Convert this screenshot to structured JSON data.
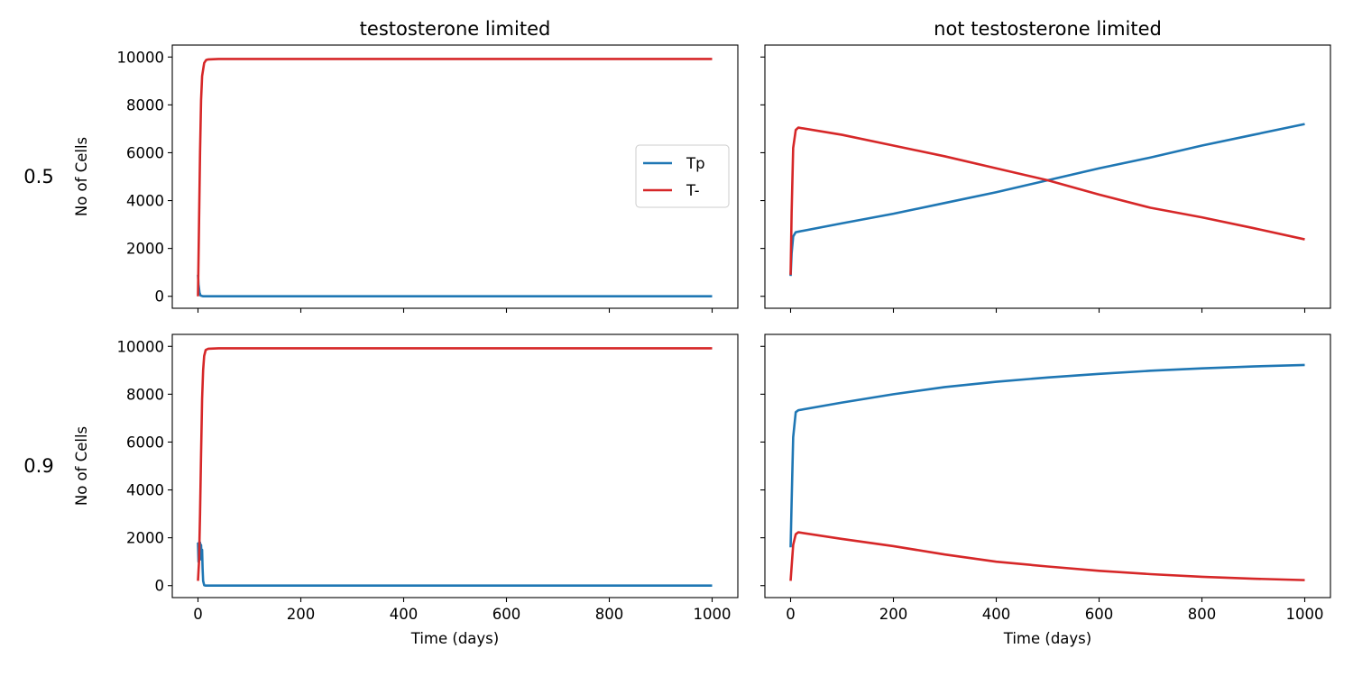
{
  "chart_data": [
    {
      "type": "line",
      "title": "testosterone limited",
      "row_label": "0.5",
      "xlabel": "",
      "ylabel": "No of Cells",
      "xlim": [
        -50,
        1050
      ],
      "ylim": [
        -500,
        10500
      ],
      "xticks": [
        0,
        200,
        400,
        600,
        800,
        1000
      ],
      "xticklabels_visible": false,
      "yticks": [
        0,
        2000,
        4000,
        6000,
        8000,
        10000
      ],
      "yticklabels_visible": true,
      "legend": {
        "placement": "center-right",
        "entries": [
          "Tp",
          "T-"
        ]
      },
      "grid": false,
      "series": [
        {
          "name": "Tp",
          "color": "#1f77b4",
          "x": [
            0,
            1,
            3,
            5,
            10,
            20,
            100,
            500,
            1000
          ],
          "y": [
            900,
            500,
            150,
            30,
            0,
            0,
            0,
            0,
            0
          ]
        },
        {
          "name": "T-",
          "color": "#d62728",
          "x": [
            0,
            2,
            4,
            6,
            8,
            12,
            16,
            20,
            40,
            100,
            500,
            1000
          ],
          "y": [
            0,
            3000,
            6000,
            8200,
            9200,
            9750,
            9880,
            9900,
            9920,
            9920,
            9920,
            9920
          ]
        }
      ]
    },
    {
      "type": "line",
      "title": "not testosterone limited",
      "row_label": "",
      "xlabel": "",
      "ylabel": "",
      "xlim": [
        -50,
        1050
      ],
      "ylim": [
        -500,
        10500
      ],
      "xticks": [
        0,
        200,
        400,
        600,
        800,
        1000
      ],
      "xticklabels_visible": false,
      "yticks": [
        0,
        2000,
        4000,
        6000,
        8000,
        10000
      ],
      "yticklabels_visible": false,
      "grid": false,
      "series": [
        {
          "name": "Tp",
          "color": "#1f77b4",
          "x": [
            0,
            2,
            5,
            10,
            15,
            100,
            200,
            300,
            400,
            500,
            600,
            700,
            800,
            900,
            1000
          ],
          "y": [
            850,
            1800,
            2500,
            2680,
            2700,
            3050,
            3450,
            3900,
            4350,
            4850,
            5350,
            5800,
            6300,
            6750,
            7200
          ]
        },
        {
          "name": "T-",
          "color": "#d62728",
          "x": [
            0,
            2,
            5,
            10,
            15,
            100,
            200,
            300,
            400,
            500,
            600,
            700,
            800,
            900,
            1000
          ],
          "y": [
            900,
            3500,
            6200,
            6950,
            7050,
            6750,
            6300,
            5850,
            5350,
            4850,
            4250,
            3700,
            3300,
            2850,
            2380
          ]
        }
      ]
    },
    {
      "type": "line",
      "title": "",
      "row_label": "0.9",
      "xlabel": "Time (days)",
      "ylabel": "No of Cells",
      "xlim": [
        -50,
        1050
      ],
      "ylim": [
        -500,
        10500
      ],
      "xticks": [
        0,
        200,
        400,
        600,
        800,
        1000
      ],
      "xticklabels_visible": true,
      "yticks": [
        0,
        2000,
        4000,
        6000,
        8000,
        10000
      ],
      "yticklabels_visible": true,
      "grid": false,
      "series": [
        {
          "name": "Tp",
          "color": "#1f77b4",
          "x": [
            0,
            1,
            2,
            3,
            4,
            5,
            6,
            7,
            8,
            9,
            10,
            12,
            15,
            30,
            1000
          ],
          "y": [
            1800,
            1000,
            1800,
            1100,
            1800,
            1100,
            1700,
            1100,
            1500,
            700,
            200,
            20,
            0,
            0,
            0
          ]
        },
        {
          "name": "T-",
          "color": "#d62728",
          "x": [
            0,
            2,
            4,
            6,
            8,
            10,
            12,
            15,
            20,
            40,
            100,
            500,
            1000
          ],
          "y": [
            200,
            1000,
            3000,
            5500,
            7800,
            9000,
            9600,
            9850,
            9900,
            9920,
            9920,
            9920,
            9920
          ]
        }
      ]
    },
    {
      "type": "line",
      "title": "",
      "row_label": "",
      "xlabel": "Time (days)",
      "ylabel": "",
      "xlim": [
        -50,
        1050
      ],
      "ylim": [
        -500,
        10500
      ],
      "xticks": [
        0,
        200,
        400,
        600,
        800,
        1000
      ],
      "xticklabels_visible": true,
      "yticks": [
        0,
        2000,
        4000,
        6000,
        8000,
        10000
      ],
      "yticklabels_visible": false,
      "grid": false,
      "series": [
        {
          "name": "Tp",
          "color": "#1f77b4",
          "x": [
            0,
            2,
            5,
            10,
            15,
            100,
            200,
            300,
            400,
            500,
            600,
            700,
            800,
            900,
            1000
          ],
          "y": [
            1600,
            3500,
            6200,
            7250,
            7330,
            7650,
            8000,
            8300,
            8520,
            8700,
            8850,
            8980,
            9080,
            9160,
            9220
          ]
        },
        {
          "name": "T-",
          "color": "#d62728",
          "x": [
            0,
            2,
            5,
            10,
            15,
            100,
            200,
            300,
            400,
            500,
            600,
            700,
            800,
            900,
            1000
          ],
          "y": [
            200,
            800,
            1700,
            2150,
            2230,
            1950,
            1650,
            1300,
            1000,
            800,
            620,
            480,
            370,
            290,
            230
          ]
        }
      ]
    }
  ]
}
